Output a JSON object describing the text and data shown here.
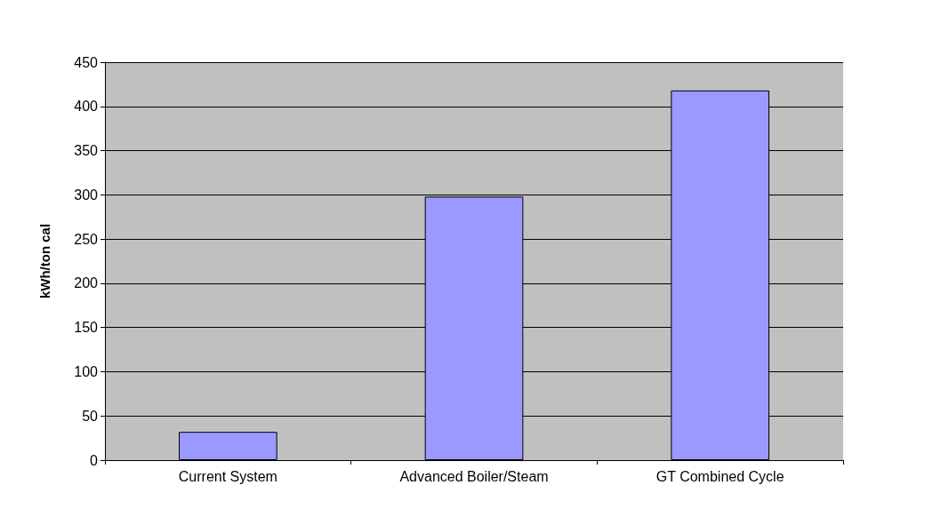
{
  "chart_data": {
    "type": "bar",
    "ylabel": "kWh/ton cal",
    "categories": [
      "Current System",
      "Advanced Boiler/Steam",
      "GT Combined Cycle"
    ],
    "values": [
      32,
      298,
      418
    ],
    "color": "#9999ff",
    "ylim": [
      0,
      450
    ],
    "yticks": [
      0,
      50,
      100,
      150,
      200,
      250,
      300,
      350,
      400,
      450
    ],
    "grid": "y"
  }
}
